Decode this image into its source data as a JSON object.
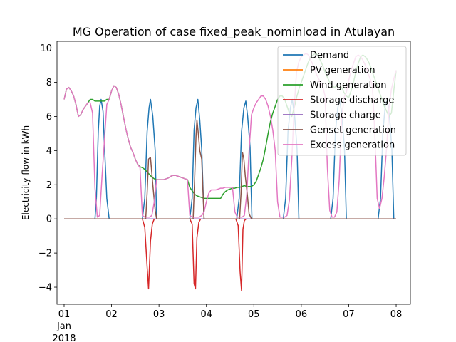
{
  "chart_data": {
    "type": "line",
    "title": "MG Operation of case fixed_peak_nominload in Atulayan",
    "xlabel": "",
    "ylabel": "Electricity flow in kWh",
    "xlim": [
      -0.15,
      7.3
    ],
    "ylim": [
      -5.0,
      10.4
    ],
    "xticks": [
      {
        "x": 0,
        "label": "01",
        "sublabels": [
          "Jan",
          "2018"
        ]
      },
      {
        "x": 1,
        "label": "02"
      },
      {
        "x": 2,
        "label": "03"
      },
      {
        "x": 3,
        "label": "04"
      },
      {
        "x": 4,
        "label": "05"
      },
      {
        "x": 5,
        "label": "06"
      },
      {
        "x": 6,
        "label": "07"
      },
      {
        "x": 7,
        "label": "08"
      }
    ],
    "yticks": [
      -4,
      -2,
      0,
      2,
      4,
      6,
      8,
      10
    ],
    "grid": false,
    "legend_position": "top-right",
    "series": [
      {
        "name": "Demand",
        "color": "#1f77b4",
        "x": [
          0,
          0.65,
          0.68,
          0.72,
          0.75,
          0.78,
          0.82,
          0.85,
          0.9,
          0.95,
          1.65,
          1.7,
          1.75,
          1.79,
          1.82,
          1.87,
          1.92,
          1.95,
          2.65,
          2.7,
          2.74,
          2.78,
          2.82,
          2.86,
          2.9,
          2.95,
          3.64,
          3.69,
          3.74,
          3.79,
          3.83,
          3.87,
          3.92,
          3.96,
          4.62,
          4.67,
          4.72,
          4.77,
          4.81,
          4.86,
          4.91,
          4.95,
          5.62,
          5.67,
          5.72,
          5.77,
          5.81,
          5.86,
          5.91,
          5.95,
          6.62,
          6.67,
          6.72,
          6.77,
          6.81,
          6.86,
          6.91,
          6.95,
          6.96,
          7.0
        ],
        "y": [
          0,
          0,
          1.2,
          5.1,
          6.6,
          7.0,
          6.3,
          4.3,
          1.2,
          0,
          0,
          1.2,
          5.1,
          6.5,
          7.0,
          6.0,
          4.0,
          0,
          0,
          1.2,
          5.2,
          6.5,
          7.0,
          5.8,
          4.1,
          0,
          0,
          1.2,
          5.1,
          6.5,
          6.9,
          6.0,
          4.2,
          0,
          0,
          1.2,
          5.1,
          6.5,
          7.0,
          6.0,
          4.1,
          0,
          0,
          1.2,
          5.1,
          6.5,
          7.0,
          6.0,
          4.1,
          0,
          0,
          1.2,
          5.1,
          6.6,
          7.0,
          6.0,
          4.1,
          0,
          0,
          0
        ]
      },
      {
        "name": "PV generation",
        "color": "#ff7f0e",
        "x": [
          0,
          7.0
        ],
        "y": [
          0,
          0
        ]
      },
      {
        "name": "Wind generation",
        "color": "#2ca02c",
        "x": [
          0,
          0.05,
          0.1,
          0.15,
          0.2,
          0.25,
          0.3,
          0.35,
          0.4,
          0.45,
          0.5,
          0.55,
          0.6,
          0.65,
          0.7,
          0.75,
          0.8,
          0.85,
          0.9,
          0.95,
          1.0,
          1.05,
          1.1,
          1.15,
          1.2,
          1.25,
          1.3,
          1.35,
          1.4,
          1.45,
          1.5,
          1.55,
          1.6,
          1.65,
          1.7,
          1.75,
          1.8,
          1.85,
          1.9,
          1.95,
          2.0,
          2.05,
          2.1,
          2.15,
          2.2,
          2.25,
          2.3,
          2.35,
          2.4,
          2.45,
          2.5,
          2.55,
          2.6,
          2.65,
          2.7,
          2.75,
          2.8,
          2.85,
          2.9,
          2.95,
          3.0,
          3.05,
          3.1,
          3.15,
          3.2,
          3.25,
          3.3,
          3.35,
          3.4,
          3.45,
          3.5,
          3.55,
          3.6,
          3.65,
          3.7,
          3.75,
          3.8,
          3.85,
          3.9,
          3.95,
          4.0,
          4.05,
          4.1,
          4.15,
          4.2,
          4.25,
          4.3,
          4.35,
          4.4,
          4.45,
          4.5,
          4.55,
          4.6,
          4.65,
          4.7,
          4.75,
          4.8,
          4.85,
          4.9,
          4.95,
          5.0,
          5.05,
          5.1,
          5.15,
          5.2,
          5.25,
          5.3,
          5.35,
          5.4,
          5.45,
          5.5,
          5.55,
          5.6,
          5.65,
          5.7,
          5.75,
          5.8,
          5.85,
          5.9,
          5.95,
          6.0,
          6.05,
          6.1,
          6.15,
          6.2,
          6.25,
          6.3,
          6.35,
          6.4,
          6.45,
          6.5,
          6.55,
          6.6,
          6.65,
          6.7,
          6.75,
          6.8,
          6.85,
          6.9,
          6.95,
          7.0
        ],
        "y": [
          7.0,
          7.6,
          7.7,
          7.5,
          7.2,
          6.7,
          6.0,
          6.1,
          6.4,
          6.6,
          6.8,
          7.0,
          7.0,
          6.9,
          6.9,
          6.9,
          6.9,
          6.9,
          7.0,
          7.0,
          7.5,
          7.8,
          7.7,
          7.3,
          6.7,
          6.0,
          5.3,
          4.7,
          4.2,
          3.9,
          3.5,
          3.2,
          3.05,
          3.0,
          2.9,
          2.75,
          2.6,
          2.45,
          2.35,
          2.3,
          2.3,
          2.3,
          2.3,
          2.35,
          2.4,
          2.5,
          2.55,
          2.55,
          2.5,
          2.45,
          2.4,
          2.35,
          2.3,
          1.85,
          1.65,
          1.45,
          1.35,
          1.3,
          1.25,
          1.2,
          1.2,
          1.2,
          1.2,
          1.2,
          1.2,
          1.2,
          1.2,
          1.45,
          1.6,
          1.7,
          1.75,
          1.8,
          1.8,
          1.85,
          1.85,
          1.9,
          1.95,
          1.9,
          1.9,
          1.9,
          2.0,
          2.2,
          2.6,
          3.0,
          3.5,
          4.2,
          5.0,
          5.7,
          6.2,
          6.6,
          7.0,
          7.2,
          7.2,
          7.0,
          6.6,
          6.2,
          6.0,
          6.5,
          7.1,
          7.6,
          8.0,
          8.4,
          8.8,
          9.2,
          9.5,
          9.6,
          9.7,
          9.6,
          9.3,
          9.0,
          8.6,
          8.3,
          8.0,
          7.8,
          7.7,
          7.8,
          7.8,
          7.7,
          7.4,
          7.2,
          7.1,
          7.5,
          8.0,
          8.6,
          9.1,
          9.5,
          9.6,
          9.5,
          9.3,
          9.0,
          8.6,
          8.2,
          7.8,
          7.4,
          7.0,
          6.6,
          6.3,
          6.0,
          6.2,
          7.5,
          8.7
        ]
      },
      {
        "name": "Storage discharge",
        "color": "#d62728",
        "x": [
          0,
          1.65,
          1.7,
          1.75,
          1.78,
          1.82,
          1.86,
          1.9,
          1.95,
          2.65,
          2.7,
          2.74,
          2.77,
          2.8,
          2.84,
          2.88,
          2.92,
          2.95,
          3.62,
          3.67,
          3.71,
          3.74,
          3.77,
          3.8,
          3.84,
          3.88,
          3.92,
          7.0
        ],
        "y": [
          0,
          0,
          -0.5,
          -2.8,
          -4.1,
          -1.3,
          -0.3,
          0,
          0,
          0,
          -0.3,
          -3.8,
          -4.1,
          -1.1,
          -0.2,
          0,
          0,
          0,
          0,
          -0.4,
          -3.1,
          -4.2,
          -0.6,
          -0.1,
          0,
          0,
          0,
          0
        ]
      },
      {
        "name": "Storage charge",
        "color": "#9467bd",
        "x": [
          0,
          7.0
        ],
        "y": [
          0,
          0
        ]
      },
      {
        "name": "Genset generation",
        "color": "#8c564b",
        "x": [
          0,
          1.72,
          1.75,
          1.78,
          1.82,
          1.87,
          1.92,
          1.95,
          2.72,
          2.75,
          2.78,
          2.8,
          2.83,
          2.86,
          2.9,
          2.95,
          3.7,
          3.73,
          3.76,
          3.79,
          3.82,
          3.86,
          3.9,
          3.95,
          7.0
        ],
        "y": [
          0,
          0,
          1.5,
          3.5,
          3.6,
          2.0,
          0.5,
          0,
          0,
          2.2,
          4.8,
          5.8,
          5.0,
          4.0,
          3.5,
          0,
          0,
          1.5,
          3.9,
          3.5,
          2.5,
          1.5,
          0.3,
          0,
          0
        ]
      },
      {
        "name": "Excess generation",
        "color": "#e377c2",
        "x": [
          0,
          0.05,
          0.1,
          0.15,
          0.2,
          0.25,
          0.3,
          0.35,
          0.4,
          0.45,
          0.5,
          0.55,
          0.6,
          0.65,
          0.7,
          0.75,
          0.8,
          0.85,
          0.9,
          0.95,
          1.0,
          1.05,
          1.1,
          1.15,
          1.2,
          1.25,
          1.3,
          1.35,
          1.4,
          1.45,
          1.5,
          1.55,
          1.6,
          1.65,
          1.7,
          1.75,
          1.8,
          1.85,
          1.9,
          1.95,
          2.0,
          2.05,
          2.1,
          2.15,
          2.2,
          2.25,
          2.3,
          2.35,
          2.4,
          2.45,
          2.5,
          2.55,
          2.6,
          2.65,
          2.7,
          2.75,
          2.8,
          2.85,
          2.9,
          2.95,
          3.0,
          3.05,
          3.1,
          3.15,
          3.2,
          3.25,
          3.3,
          3.35,
          3.4,
          3.45,
          3.5,
          3.55,
          3.6,
          3.65,
          3.7,
          3.75,
          3.8,
          3.85,
          3.9,
          3.95,
          4.0,
          4.05,
          4.1,
          4.15,
          4.2,
          4.25,
          4.3,
          4.35,
          4.4,
          4.45,
          4.5,
          4.55,
          4.6,
          4.65,
          4.7,
          4.75,
          4.8,
          4.85,
          4.9,
          4.95,
          5.0,
          5.05,
          5.1,
          5.15,
          5.2,
          5.25,
          5.3,
          5.35,
          5.4,
          5.45,
          5.5,
          5.55,
          5.6,
          5.65,
          5.7,
          5.75,
          5.8,
          5.85,
          5.9,
          5.95,
          6.0,
          6.05,
          6.1,
          6.15,
          6.2,
          6.25,
          6.3,
          6.35,
          6.4,
          6.45,
          6.5,
          6.55,
          6.6,
          6.65,
          6.7,
          6.75,
          6.8,
          6.85,
          6.9,
          6.95,
          7.0
        ],
        "y": [
          7.0,
          7.6,
          7.7,
          7.5,
          7.2,
          6.7,
          6.0,
          6.1,
          6.4,
          6.6,
          6.8,
          6.8,
          6.2,
          1.8,
          0.1,
          0.2,
          2.5,
          4.6,
          6.7,
          7.0,
          7.5,
          7.8,
          7.7,
          7.3,
          6.7,
          6.0,
          5.3,
          4.7,
          4.2,
          3.9,
          3.5,
          3.2,
          3.0,
          0.2,
          0.1,
          0.1,
          0.1,
          0.2,
          1.0,
          2.3,
          2.3,
          2.3,
          2.3,
          2.35,
          2.4,
          2.5,
          2.55,
          2.55,
          2.5,
          2.45,
          2.4,
          2.35,
          2.3,
          0.2,
          0.1,
          0.1,
          0.1,
          0.1,
          0.2,
          0.4,
          1.0,
          1.5,
          1.7,
          1.7,
          1.7,
          1.75,
          1.8,
          1.8,
          1.85,
          1.85,
          1.85,
          1.85,
          0.4,
          0.1,
          0.1,
          0.1,
          0.2,
          1.4,
          4.0,
          6.1,
          6.5,
          6.8,
          7.0,
          7.2,
          7.2,
          7.0,
          6.6,
          6.0,
          5.2,
          4.0,
          1.0,
          0.1,
          0.1,
          0.1,
          0.2,
          1.1,
          3.5,
          6.5,
          8.6,
          9.2,
          9.5,
          9.6,
          9.7,
          9.6,
          9.3,
          9.0,
          8.6,
          8.3,
          8.0,
          7.8,
          7.2,
          3.0,
          0.5,
          0.1,
          0.1,
          0.4,
          2.3,
          5.8,
          7.1,
          7.4,
          8.1,
          8.7,
          9.1,
          9.5,
          9.6,
          9.5,
          9.3,
          9.0,
          8.6,
          8.2,
          7.8,
          5.0,
          1.2,
          0.6,
          1.2,
          2.5,
          4.2,
          6.5,
          7.6,
          8.2,
          8.7
        ]
      }
    ]
  }
}
